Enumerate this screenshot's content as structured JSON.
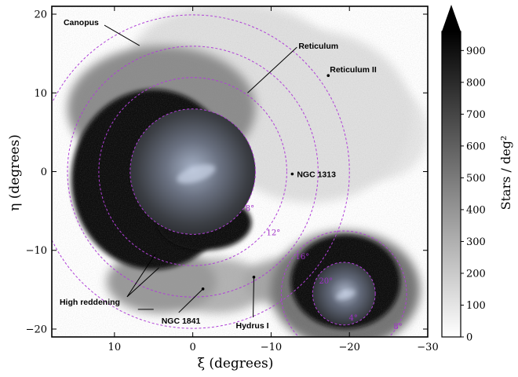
{
  "chart_data": {
    "type": "heatmap",
    "xlabel": "ξ (degrees)",
    "ylabel": "η (degrees)",
    "xlim": [
      18,
      -30
    ],
    "ylim": [
      -21,
      21
    ],
    "x_ticks": [
      10,
      0,
      -10,
      -20,
      -30
    ],
    "x_tick_labels": [
      "10",
      "0",
      "−10",
      "−20",
      "−30"
    ],
    "y_ticks": [
      20,
      10,
      0,
      -10,
      -20
    ],
    "y_tick_labels": [
      "20",
      "10",
      "0",
      "−10",
      "−20"
    ],
    "colorbar": {
      "label": "Stars / deg²",
      "min": 0,
      "max": 960,
      "extend": "max",
      "ticks": [
        0,
        100,
        200,
        300,
        400,
        500,
        600,
        700,
        800,
        900
      ],
      "tick_labels": [
        "0",
        "100",
        "200",
        "300",
        "400",
        "500",
        "600",
        "700",
        "800",
        "900"
      ]
    },
    "galaxies": [
      {
        "id": "lmc",
        "x": 0.0,
        "y": 0.0,
        "radius_deg": 8.0
      },
      {
        "id": "smc",
        "x": -19.3,
        "y": -15.5,
        "radius_deg": 4.0
      }
    ],
    "lmc_circles": {
      "center": [
        0.0,
        0.0
      ],
      "radii": [
        8,
        12,
        16,
        20
      ],
      "labels": [
        "8°",
        "12°",
        "16°",
        "20°"
      ],
      "label_positions": [
        [
          -7.3,
          -5.0
        ],
        [
          -10.3,
          -8.1
        ],
        [
          -14.0,
          -11.1
        ],
        [
          -17.0,
          -14.2
        ]
      ]
    },
    "smc_circles": {
      "center": [
        -19.3,
        -15.5
      ],
      "radii": [
        4,
        8
      ],
      "labels": [
        "4°",
        "8°"
      ],
      "label_positions": [
        [
          -20.5,
          -18.9
        ],
        [
          -26.2,
          -20.0
        ]
      ]
    },
    "overdensities": [
      {
        "x": 5.0,
        "y": -1.0,
        "rx": 10.5,
        "ry": 11.5,
        "level": 0.97
      },
      {
        "x": -1.5,
        "y": -6.5,
        "rx": 6.0,
        "ry": 3.5,
        "level": 0.97
      },
      {
        "x": -19.5,
        "y": -14.0,
        "rx": 7.0,
        "ry": 6.0,
        "level": 0.97
      },
      {
        "x": -19.5,
        "y": -15.0,
        "rx": 9.5,
        "ry": 7.5,
        "level": 0.55
      },
      {
        "x": 4.0,
        "y": 8.0,
        "rx": 12.0,
        "ry": 8.0,
        "level": 0.45
      },
      {
        "x": 4.0,
        "y": -14.0,
        "rx": 7.0,
        "ry": 4.0,
        "level": 0.4
      },
      {
        "x": -3.0,
        "y": -14.5,
        "rx": 6.5,
        "ry": 3.5,
        "level": 0.3
      },
      {
        "x": -12.0,
        "y": -14.0,
        "rx": 5.5,
        "ry": 3.0,
        "level": 0.35
      },
      {
        "x": -15.0,
        "y": 7.0,
        "rx": 13.0,
        "ry": 11.0,
        "level": 0.12
      },
      {
        "x": -5.0,
        "y": 14.0,
        "rx": 13.0,
        "ry": 7.5,
        "level": 0.12
      },
      {
        "x": -24.0,
        "y": 5.0,
        "rx": 6.0,
        "ry": 6.0,
        "level": 0.1
      }
    ],
    "annotations": [
      {
        "label": "Canopus",
        "text_x": 16.5,
        "text_y": 19.0,
        "point_x": 6.8,
        "point_y": 16.0
      },
      {
        "label": "Reticulum",
        "text_x": -13.5,
        "text_y": 16.0,
        "point_x": -7.0,
        "point_y": 10.0
      },
      {
        "label": "Reticulum II",
        "text_x": -17.5,
        "text_y": 13.0,
        "point_x": -17.3,
        "point_y": 12.2
      },
      {
        "label": "NGC 1313",
        "text_x": -13.3,
        "text_y": -0.3,
        "point_x": -12.7,
        "point_y": -0.3
      },
      {
        "label": "High reddening",
        "text_x": 17.0,
        "text_y": -16.5,
        "point_x": 4.8,
        "point_y": -10.5
      },
      {
        "label": "",
        "text_x": 7.0,
        "text_y": -17.5,
        "point_x": 5.0,
        "point_y": -17.5
      },
      {
        "label": "NGC 1841",
        "text_x": 4.0,
        "text_y": -18.9,
        "point_x": -1.3,
        "point_y": -14.9
      },
      {
        "label": "Hydrus I",
        "text_x": -5.5,
        "text_y": -19.5,
        "point_x": -7.8,
        "point_y": -13.4
      }
    ],
    "unlabeled_points": [
      {
        "x": -7.8,
        "y": -13.4
      },
      {
        "x": -1.3,
        "y": -14.9
      }
    ]
  }
}
